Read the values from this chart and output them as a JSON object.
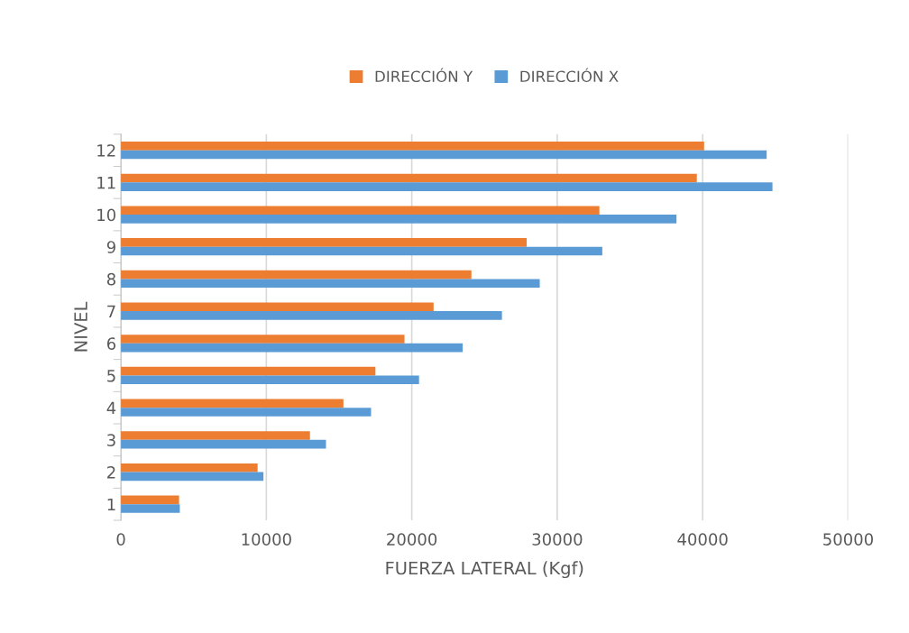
{
  "chart_data": {
    "type": "bar",
    "orientation": "horizontal",
    "xlabel": "FUERZA LATERAL (Kgf)",
    "ylabel": "NIVEL",
    "categories": [
      "12",
      "11",
      "10",
      "9",
      "8",
      "7",
      "6",
      "5",
      "4",
      "3",
      "2",
      "1"
    ],
    "series": [
      {
        "name": "DIRECCIÓN Y",
        "color": "#ed7d31",
        "values": [
          40100,
          39600,
          32900,
          27900,
          24100,
          21500,
          19500,
          17500,
          15300,
          13000,
          9400,
          4000
        ]
      },
      {
        "name": "DIRECCIÓN X",
        "color": "#5b9bd5",
        "values": [
          44400,
          44800,
          38200,
          33100,
          28800,
          26200,
          23500,
          20500,
          17200,
          14100,
          9800,
          4050
        ]
      }
    ],
    "xlim": [
      0,
      50000
    ],
    "xticks": [
      0,
      10000,
      20000,
      30000,
      40000,
      50000
    ],
    "grid": "x",
    "legend": "top"
  }
}
